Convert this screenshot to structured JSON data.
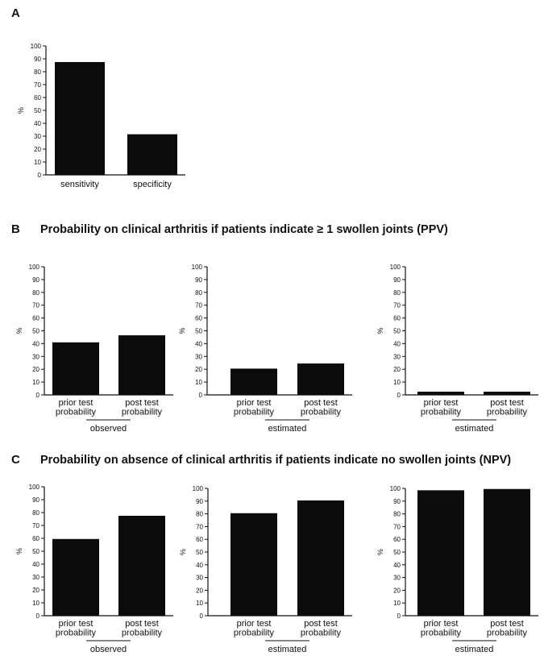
{
  "panels": {
    "a": {
      "label": "A"
    },
    "b": {
      "label": "B",
      "title": "Probability on clinical arthritis if patients indicate ≥ 1 swollen joints (PPV)"
    },
    "c": {
      "label": "C",
      "title": "Probability on absence of clinical arthritis if patients indicate no swollen joints (NPV)"
    }
  },
  "colors": {
    "bar": "#0b0b0b",
    "axis": "#111111"
  },
  "chart_data": [
    {
      "id": "A",
      "type": "bar",
      "ylabel": "%",
      "ylim": [
        0,
        100
      ],
      "yticks": [
        0,
        10,
        20,
        30,
        40,
        50,
        60,
        70,
        80,
        90,
        100
      ],
      "categories": [
        "sensitivity",
        "specificity"
      ],
      "values": [
        87.5,
        31.5
      ],
      "group_label": ""
    },
    {
      "id": "B1",
      "type": "bar",
      "ylabel": "%",
      "ylim": [
        0,
        100
      ],
      "yticks": [
        0,
        10,
        20,
        30,
        40,
        50,
        60,
        70,
        80,
        90,
        100
      ],
      "categories": [
        [
          "prior test",
          "probability"
        ],
        [
          "post test",
          "probability"
        ]
      ],
      "values": [
        41,
        46.5
      ],
      "group_label": "observed"
    },
    {
      "id": "B2",
      "type": "bar",
      "ylabel": "%",
      "ylim": [
        0,
        100
      ],
      "yticks": [
        0,
        10,
        20,
        30,
        40,
        50,
        60,
        70,
        80,
        90,
        100
      ],
      "categories": [
        [
          "prior test",
          "probability"
        ],
        [
          "post test",
          "probability"
        ]
      ],
      "values": [
        20.5,
        24.5
      ],
      "group_label": "estimated"
    },
    {
      "id": "B3",
      "type": "bar",
      "ylabel": "%",
      "ylim": [
        0,
        100
      ],
      "yticks": [
        0,
        10,
        20,
        30,
        40,
        50,
        60,
        70,
        80,
        90,
        100
      ],
      "categories": [
        [
          "prior test",
          "probability"
        ],
        [
          "post test",
          "probability"
        ]
      ],
      "values": [
        2.5,
        2.5
      ],
      "group_label": "estimated"
    },
    {
      "id": "C1",
      "type": "bar",
      "ylabel": "%",
      "ylim": [
        0,
        100
      ],
      "yticks": [
        0,
        10,
        20,
        30,
        40,
        50,
        60,
        70,
        80,
        90,
        100
      ],
      "categories": [
        [
          "prior test",
          "probability"
        ],
        [
          "post test",
          "probability"
        ]
      ],
      "values": [
        59.5,
        77.5
      ],
      "group_label": "observed"
    },
    {
      "id": "C2",
      "type": "bar",
      "ylabel": "%",
      "ylim": [
        0,
        100
      ],
      "yticks": [
        0,
        10,
        20,
        30,
        40,
        50,
        60,
        70,
        80,
        90,
        100
      ],
      "categories": [
        [
          "prior test",
          "probability"
        ],
        [
          "post test",
          "probability"
        ]
      ],
      "values": [
        80.5,
        90.5
      ],
      "group_label": "estimated"
    },
    {
      "id": "C3",
      "type": "bar",
      "ylabel": "%",
      "ylim": [
        0,
        100
      ],
      "yticks": [
        0,
        10,
        20,
        30,
        40,
        50,
        60,
        70,
        80,
        90,
        100
      ],
      "categories": [
        [
          "prior test",
          "probability"
        ],
        [
          "post test",
          "probability"
        ]
      ],
      "values": [
        98.5,
        99.5
      ],
      "group_label": "estimated"
    }
  ]
}
